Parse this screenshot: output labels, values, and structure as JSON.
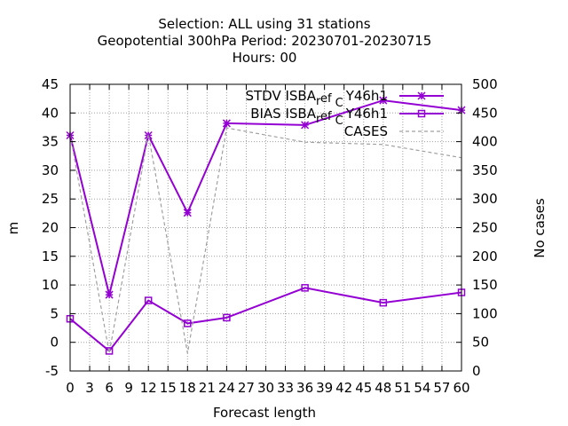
{
  "chart_data": {
    "type": "line",
    "title_lines": [
      "Selection: ALL using    31 stations",
      "Geopotential 300hPa   Period: 20230701-20230715",
      "Hours:  00"
    ],
    "xlabel": "Forecast length",
    "ylabel": "m",
    "y2label": "No cases",
    "xlim": [
      0,
      60
    ],
    "ylim": [
      -5,
      45
    ],
    "y2lim": [
      0,
      500
    ],
    "x_ticks": [
      0,
      3,
      6,
      9,
      12,
      15,
      18,
      21,
      24,
      27,
      30,
      33,
      36,
      39,
      42,
      45,
      48,
      51,
      54,
      57,
      60
    ],
    "y_ticks": [
      -5,
      0,
      5,
      10,
      15,
      20,
      25,
      30,
      35,
      40,
      45
    ],
    "y2_ticks": [
      0,
      50,
      100,
      150,
      200,
      250,
      300,
      350,
      400,
      450,
      500
    ],
    "grid": true,
    "legend_position": "top-right",
    "series": [
      {
        "name": "STDV ISBA_ref_C Y46h1",
        "label_main": "STDV ISBA",
        "label_sub": "ref",
        "label_sub2": "C",
        "label_tail": "Y46h1",
        "axis": "y",
        "color": "#9400d3",
        "marker": "star",
        "x": [
          0,
          6,
          12,
          18,
          24,
          36,
          48,
          60
        ],
        "y": [
          36.1,
          8.3,
          36.1,
          22.6,
          38.2,
          37.9,
          42.2,
          40.5
        ]
      },
      {
        "name": "BIAS ISBA_ref_C Y46h1",
        "label_main": "BIAS ISBA",
        "label_sub": "ref",
        "label_sub2": "C",
        "label_tail": "Y46h1",
        "axis": "y",
        "color": "#9400d3",
        "marker": "square",
        "x": [
          0,
          6,
          12,
          18,
          24,
          36,
          48,
          60
        ],
        "y": [
          4.1,
          -1.5,
          7.3,
          3.3,
          4.3,
          9.5,
          6.9,
          8.7
        ]
      },
      {
        "name": "CASES",
        "label_main": "CASES",
        "axis": "y2",
        "color": "#a0a0a0",
        "marker": "none",
        "dashed": true,
        "x": [
          0,
          6,
          12,
          18,
          24,
          36,
          48,
          60
        ],
        "y": [
          413,
          31,
          413,
          31,
          424,
          399,
          395,
          372
        ]
      }
    ]
  }
}
